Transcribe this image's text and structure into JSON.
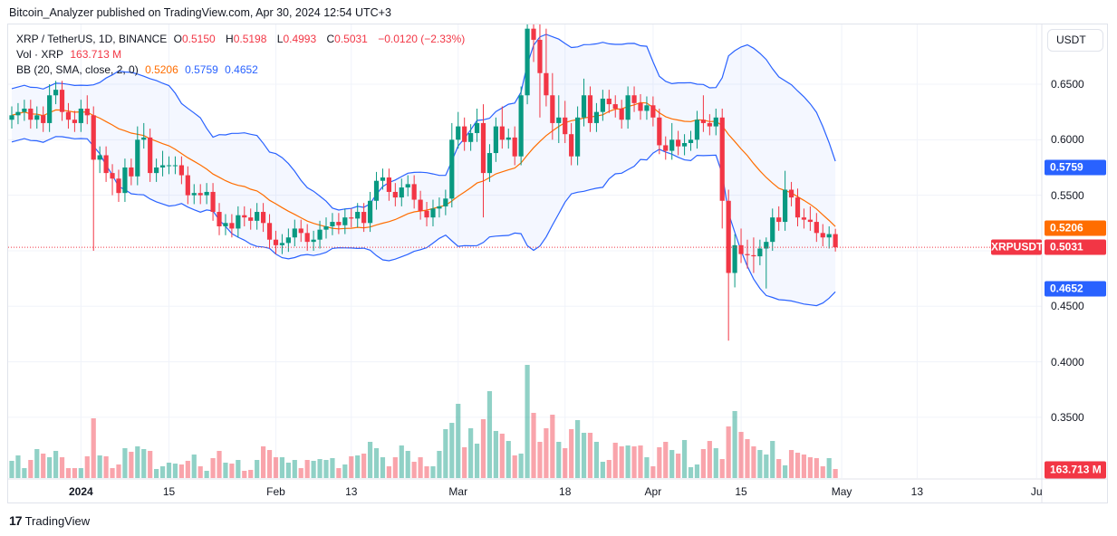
{
  "header": {
    "published": "Bitcoin_Analyzer published on TradingView.com, Apr 30, 2024 12:54 UTC+3"
  },
  "legend": {
    "symbol": "XRP / TetherUS, 1D, BINANCE",
    "o_label": "O",
    "open": "0.5150",
    "h_label": "H",
    "high": "0.5198",
    "l_label": "L",
    "low": "0.4993",
    "c_label": "C",
    "close": "0.5031",
    "change": "−0.0120 (−2.33%)",
    "vol_label": "Vol · XRP",
    "vol_value": "163.713 M",
    "bb_label": "BB (20, SMA, close, 2, 0)",
    "bb_basis": "0.5206",
    "bb_upper": "0.5759",
    "bb_lower": "0.4652"
  },
  "axis": {
    "currency": "USDT",
    "price_ticks": [
      "0.6500",
      "0.6000",
      "0.5500",
      "0.4500",
      "0.4000",
      "0.3500"
    ],
    "tags": {
      "bb_upper": "0.5759",
      "bb_basis": "0.5206",
      "symbol": "XRPUSDT",
      "last": "0.5031",
      "bb_lower": "0.4652",
      "volume": "163.713 M"
    },
    "time_ticks": [
      "2024",
      "15",
      "Feb",
      "13",
      "Mar",
      "18",
      "Apr",
      "15",
      "May",
      "13",
      "Ju"
    ]
  },
  "footer": {
    "brand": "TradingView"
  },
  "colors": {
    "up": "#089981",
    "down": "#f23645",
    "bb_band": "#2962ff",
    "bb_basis": "#ff6d00"
  },
  "chart_data": {
    "type": "candlestick",
    "symbol": "XRPUSDT",
    "interval": "1D",
    "date_range": [
      "2023-12-21",
      "2024-04-30"
    ],
    "ylim": [
      0.33,
      0.7
    ],
    "grid": true,
    "indicator": "Bollinger Bands (20, SMA, close, 2, 0)",
    "candles_ohlc": [
      [
        0.618,
        0.63,
        0.61,
        0.622
      ],
      [
        0.622,
        0.633,
        0.614,
        0.625
      ],
      [
        0.625,
        0.636,
        0.617,
        0.628
      ],
      [
        0.628,
        0.636,
        0.61,
        0.618
      ],
      [
        0.618,
        0.63,
        0.61,
        0.622
      ],
      [
        0.622,
        0.63,
        0.607,
        0.615
      ],
      [
        0.615,
        0.65,
        0.607,
        0.64
      ],
      [
        0.64,
        0.653,
        0.632,
        0.645
      ],
      [
        0.645,
        0.653,
        0.617,
        0.625
      ],
      [
        0.625,
        0.633,
        0.61,
        0.618
      ],
      [
        0.618,
        0.626,
        0.607,
        0.615
      ],
      [
        0.615,
        0.636,
        0.607,
        0.628
      ],
      [
        0.628,
        0.64,
        0.614,
        0.622
      ],
      [
        0.622,
        0.63,
        0.5,
        0.582
      ],
      [
        0.582,
        0.594,
        0.57,
        0.586
      ],
      [
        0.586,
        0.594,
        0.562,
        0.57
      ],
      [
        0.57,
        0.578,
        0.55,
        0.565
      ],
      [
        0.565,
        0.573,
        0.544,
        0.552
      ],
      [
        0.552,
        0.583,
        0.544,
        0.575
      ],
      [
        0.575,
        0.583,
        0.559,
        0.567
      ],
      [
        0.567,
        0.612,
        0.559,
        0.6
      ],
      [
        0.6,
        0.615,
        0.592,
        0.602
      ],
      [
        0.602,
        0.61,
        0.562,
        0.57
      ],
      [
        0.57,
        0.583,
        0.562,
        0.575
      ],
      [
        0.575,
        0.59,
        0.567,
        0.577
      ],
      [
        0.577,
        0.585,
        0.569,
        0.577
      ],
      [
        0.577,
        0.585,
        0.569,
        0.577
      ],
      [
        0.577,
        0.585,
        0.56,
        0.568
      ],
      [
        0.568,
        0.576,
        0.542,
        0.55
      ],
      [
        0.55,
        0.56,
        0.542,
        0.552
      ],
      [
        0.552,
        0.56,
        0.542,
        0.55
      ],
      [
        0.55,
        0.561,
        0.542,
        0.553
      ],
      [
        0.553,
        0.561,
        0.527,
        0.535
      ],
      [
        0.535,
        0.543,
        0.514,
        0.522
      ],
      [
        0.522,
        0.533,
        0.514,
        0.525
      ],
      [
        0.525,
        0.533,
        0.512,
        0.52
      ],
      [
        0.52,
        0.54,
        0.512,
        0.532
      ],
      [
        0.532,
        0.54,
        0.522,
        0.53
      ],
      [
        0.53,
        0.538,
        0.519,
        0.527
      ],
      [
        0.527,
        0.543,
        0.519,
        0.535
      ],
      [
        0.535,
        0.543,
        0.517,
        0.525
      ],
      [
        0.525,
        0.533,
        0.502,
        0.51
      ],
      [
        0.51,
        0.518,
        0.497,
        0.505
      ],
      [
        0.505,
        0.515,
        0.497,
        0.507
      ],
      [
        0.507,
        0.52,
        0.499,
        0.512
      ],
      [
        0.512,
        0.528,
        0.504,
        0.52
      ],
      [
        0.52,
        0.528,
        0.508,
        0.516
      ],
      [
        0.516,
        0.524,
        0.5,
        0.508
      ],
      [
        0.508,
        0.518,
        0.5,
        0.51
      ],
      [
        0.51,
        0.527,
        0.502,
        0.519
      ],
      [
        0.519,
        0.53,
        0.511,
        0.522
      ],
      [
        0.522,
        0.534,
        0.514,
        0.526
      ],
      [
        0.526,
        0.534,
        0.515,
        0.523
      ],
      [
        0.523,
        0.538,
        0.515,
        0.53
      ],
      [
        0.53,
        0.538,
        0.521,
        0.529
      ],
      [
        0.529,
        0.543,
        0.521,
        0.535
      ],
      [
        0.535,
        0.543,
        0.517,
        0.525
      ],
      [
        0.525,
        0.553,
        0.517,
        0.545
      ],
      [
        0.545,
        0.571,
        0.537,
        0.563
      ],
      [
        0.563,
        0.574,
        0.555,
        0.566
      ],
      [
        0.566,
        0.574,
        0.545,
        0.553
      ],
      [
        0.553,
        0.561,
        0.54,
        0.548
      ],
      [
        0.548,
        0.565,
        0.54,
        0.557
      ],
      [
        0.557,
        0.568,
        0.549,
        0.56
      ],
      [
        0.56,
        0.568,
        0.538,
        0.546
      ],
      [
        0.546,
        0.554,
        0.528,
        0.536
      ],
      [
        0.536,
        0.544,
        0.522,
        0.53
      ],
      [
        0.53,
        0.546,
        0.522,
        0.538
      ],
      [
        0.538,
        0.548,
        0.53,
        0.54
      ],
      [
        0.54,
        0.555,
        0.532,
        0.547
      ],
      [
        0.547,
        0.615,
        0.539,
        0.6
      ],
      [
        0.6,
        0.625,
        0.592,
        0.612
      ],
      [
        0.612,
        0.62,
        0.59,
        0.598
      ],
      [
        0.598,
        0.614,
        0.59,
        0.606
      ],
      [
        0.606,
        0.628,
        0.598,
        0.615
      ],
      [
        0.615,
        0.632,
        0.53,
        0.57
      ],
      [
        0.57,
        0.596,
        0.562,
        0.588
      ],
      [
        0.588,
        0.62,
        0.58,
        0.612
      ],
      [
        0.612,
        0.63,
        0.592,
        0.6
      ],
      [
        0.6,
        0.61,
        0.592,
        0.602
      ],
      [
        0.602,
        0.612,
        0.577,
        0.585
      ],
      [
        0.585,
        0.648,
        0.577,
        0.64
      ],
      [
        0.64,
        0.74,
        0.632,
        0.7
      ],
      [
        0.7,
        0.74,
        0.67,
        0.69
      ],
      [
        0.69,
        0.705,
        0.62,
        0.66
      ],
      [
        0.66,
        0.7,
        0.63,
        0.64
      ],
      [
        0.64,
        0.66,
        0.6,
        0.615
      ],
      [
        0.615,
        0.64,
        0.597,
        0.62
      ],
      [
        0.62,
        0.635,
        0.597,
        0.605
      ],
      [
        0.605,
        0.615,
        0.577,
        0.585
      ],
      [
        0.585,
        0.63,
        0.577,
        0.62
      ],
      [
        0.62,
        0.655,
        0.612,
        0.64
      ],
      [
        0.64,
        0.648,
        0.607,
        0.615
      ],
      [
        0.615,
        0.633,
        0.607,
        0.625
      ],
      [
        0.625,
        0.645,
        0.617,
        0.637
      ],
      [
        0.637,
        0.645,
        0.624,
        0.632
      ],
      [
        0.632,
        0.64,
        0.62,
        0.628
      ],
      [
        0.628,
        0.636,
        0.61,
        0.618
      ],
      [
        0.618,
        0.648,
        0.61,
        0.64
      ],
      [
        0.64,
        0.648,
        0.625,
        0.633
      ],
      [
        0.633,
        0.641,
        0.618,
        0.626
      ],
      [
        0.626,
        0.639,
        0.618,
        0.631
      ],
      [
        0.631,
        0.639,
        0.612,
        0.62
      ],
      [
        0.62,
        0.628,
        0.587,
        0.595
      ],
      [
        0.595,
        0.603,
        0.582,
        0.59
      ],
      [
        0.59,
        0.615,
        0.582,
        0.6
      ],
      [
        0.6,
        0.608,
        0.586,
        0.594
      ],
      [
        0.594,
        0.605,
        0.586,
        0.597
      ],
      [
        0.597,
        0.608,
        0.59,
        0.6
      ],
      [
        0.6,
        0.626,
        0.592,
        0.618
      ],
      [
        0.618,
        0.64,
        0.607,
        0.615
      ],
      [
        0.615,
        0.623,
        0.604,
        0.612
      ],
      [
        0.612,
        0.628,
        0.604,
        0.62
      ],
      [
        0.62,
        0.628,
        0.52,
        0.545
      ],
      [
        0.545,
        0.555,
        0.419,
        0.48
      ],
      [
        0.48,
        0.515,
        0.467,
        0.505
      ],
      [
        0.505,
        0.52,
        0.489,
        0.497
      ],
      [
        0.497,
        0.51,
        0.484,
        0.496
      ],
      [
        0.496,
        0.512,
        0.48,
        0.495
      ],
      [
        0.495,
        0.51,
        0.487,
        0.502
      ],
      [
        0.502,
        0.512,
        0.466,
        0.508
      ],
      [
        0.508,
        0.538,
        0.5,
        0.53
      ],
      [
        0.53,
        0.54,
        0.518,
        0.526
      ],
      [
        0.526,
        0.572,
        0.518,
        0.555
      ],
      [
        0.555,
        0.562,
        0.54,
        0.548
      ],
      [
        0.548,
        0.556,
        0.522,
        0.53
      ],
      [
        0.53,
        0.538,
        0.52,
        0.528
      ],
      [
        0.528,
        0.54,
        0.518,
        0.526
      ],
      [
        0.526,
        0.534,
        0.508,
        0.516
      ],
      [
        0.516,
        0.524,
        0.504,
        0.512
      ],
      [
        0.512,
        0.522,
        0.502,
        0.515
      ],
      [
        0.515,
        0.5198,
        0.4993,
        0.5031
      ]
    ],
    "volume_millions": [
      312,
      410,
      180,
      328,
      525,
      443,
      377,
      492,
      377,
      180,
      180,
      180,
      394,
      1082,
      410,
      394,
      180,
      246,
      541,
      476,
      574,
      525,
      492,
      164,
      213,
      279,
      262,
      246,
      312,
      426,
      213,
      131,
      361,
      492,
      279,
      262,
      328,
      131,
      148,
      328,
      574,
      508,
      377,
      377,
      279,
      328,
      180,
      328,
      312,
      344,
      328,
      361,
      180,
      246,
      394,
      410,
      443,
      656,
      541,
      377,
      213,
      377,
      590,
      492,
      295,
      377,
      213,
      213,
      492,
      886,
      1000,
      1345,
      558,
      902,
      623,
      1066,
      1574,
      853,
      804,
      672,
      410,
      443,
      2050,
      1181,
      656,
      902,
      1148,
      656,
      541,
      886,
      1050,
      820,
      820,
      656,
      295,
      328,
      640,
      574,
      590,
      574,
      590,
      377,
      213,
      558,
      656,
      508,
      443,
      689,
      197,
      246,
      525,
      672,
      541,
      344,
      935,
      1214,
      836,
      705,
      574,
      508,
      426,
      672,
      344,
      230,
      508,
      459,
      426,
      377,
      361,
      213,
      361,
      163.713
    ]
  }
}
